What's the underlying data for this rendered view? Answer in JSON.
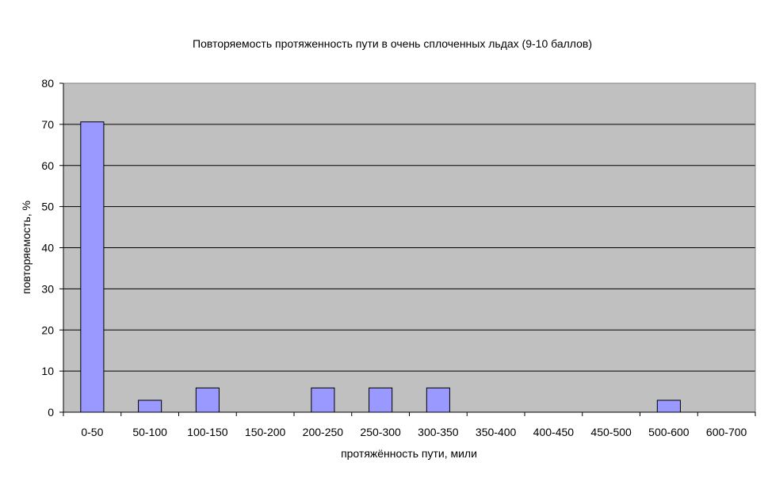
{
  "chart_data": {
    "type": "bar",
    "title": "Повторяемость протяженность пути в очень сплоченных льдах (9-10 баллов)",
    "xlabel": "протяжённость пути, мили",
    "ylabel": "повторяемость, %",
    "categories": [
      "0-50",
      "50-100",
      "100-150",
      "150-200",
      "200-250",
      "250-300",
      "300-350",
      "350-400",
      "400-450",
      "450-500",
      "500-600",
      "600-700"
    ],
    "values": [
      70.6,
      2.9,
      5.9,
      0,
      5.9,
      5.9,
      5.9,
      0,
      0,
      0,
      2.9,
      0
    ],
    "ylim": [
      0,
      80
    ],
    "yticks": [
      0,
      10,
      20,
      30,
      40,
      50,
      60,
      70,
      80
    ],
    "grid": true,
    "legend": "none",
    "colors": {
      "bar_fill": "#9999ff",
      "bar_stroke": "#000000",
      "plot_bg": "#c0c0c0",
      "gridline": "#000000"
    }
  }
}
